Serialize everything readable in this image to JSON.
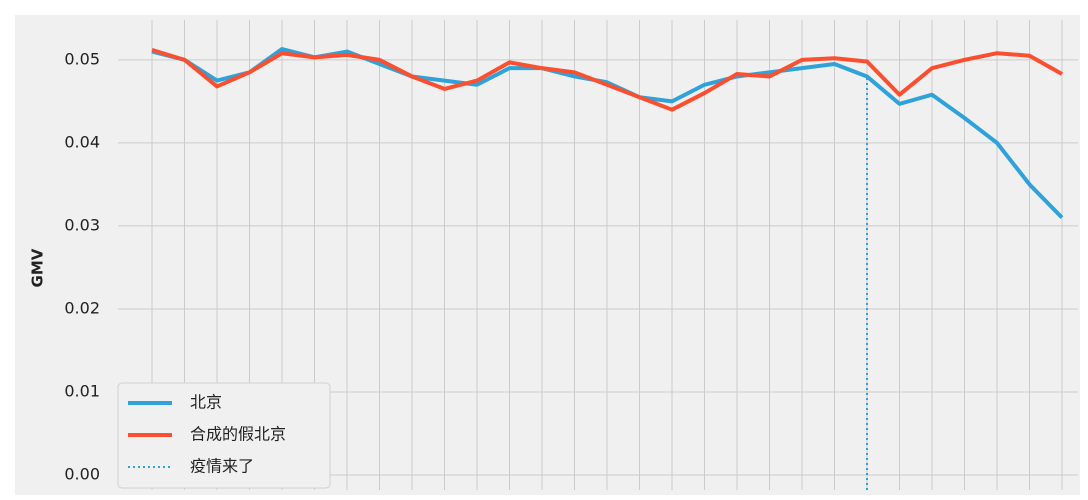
{
  "chart_data": {
    "type": "line",
    "ylabel": "GMV",
    "categories": [
      null,
      null,
      null,
      null,
      null,
      null,
      null,
      null,
      null,
      null,
      null,
      null,
      null,
      null,
      null,
      null,
      null,
      null,
      null,
      null,
      null,
      null,
      null,
      null,
      null,
      null,
      null,
      null,
      null
    ],
    "series": [
      {
        "name": "北京",
        "color": "#30a2da",
        "values": [
          0.051,
          0.05,
          0.0475,
          0.0485,
          0.0513,
          0.0503,
          0.051,
          0.0495,
          0.048,
          0.0475,
          0.047,
          0.049,
          0.049,
          0.048,
          0.0473,
          0.0455,
          0.045,
          0.047,
          0.048,
          0.0485,
          0.049,
          0.0495,
          0.048,
          0.0447,
          0.0458,
          0.043,
          0.04,
          0.035,
          0.031
        ]
      },
      {
        "name": "合成的假北京",
        "color": "#fc4f30",
        "values": [
          0.0512,
          0.05,
          0.0468,
          0.0485,
          0.0508,
          0.0503,
          0.0506,
          0.05,
          0.048,
          0.0465,
          0.0475,
          0.0497,
          0.049,
          0.0485,
          0.047,
          0.0455,
          0.044,
          0.046,
          0.0483,
          0.048,
          0.05,
          0.0502,
          0.0498,
          0.0458,
          0.049,
          0.05,
          0.0508,
          0.0505,
          0.0483
        ]
      }
    ],
    "vline": {
      "at": 22,
      "name": "疫情来了",
      "color": "#30a2da"
    },
    "ylim": [
      -0.0018,
      0.0548
    ],
    "yticks": [
      {
        "value": 0,
        "label": "0.00"
      },
      0.01,
      0.02,
      0.03,
      0.04,
      0.05
    ],
    "grid": true,
    "legend": "lower left"
  }
}
